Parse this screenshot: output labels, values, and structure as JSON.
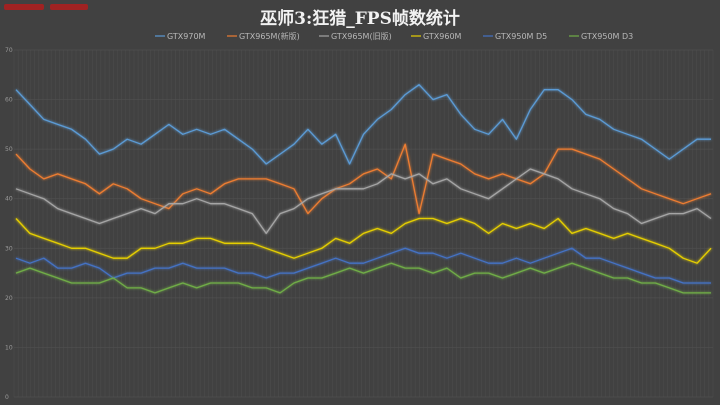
{
  "chart_data": {
    "type": "line",
    "title": "巫师3:狂猎_FPS帧数统计",
    "xlabel": "",
    "ylabel": "",
    "ylim": [
      0,
      70
    ],
    "yticks": [
      0,
      10,
      20,
      30,
      40,
      50,
      60,
      70
    ],
    "grid": true,
    "legend_position": "top",
    "background": "#414141",
    "series": [
      {
        "name": "GTX970M",
        "color": "#5b9bd5",
        "values": [
          62,
          59,
          56,
          55,
          54,
          52,
          49,
          50,
          52,
          51,
          53,
          55,
          53,
          54,
          53,
          54,
          52,
          50,
          47,
          49,
          51,
          54,
          51,
          53,
          47,
          53,
          56,
          58,
          61,
          63,
          60,
          61,
          57,
          54,
          53,
          56,
          52,
          58,
          62,
          62,
          60,
          57,
          56,
          54,
          53,
          52,
          50,
          48,
          50,
          52,
          52
        ]
      },
      {
        "name": "GTX965M(新版)",
        "color": "#ed7d31",
        "values": [
          49,
          46,
          44,
          45,
          44,
          43,
          41,
          43,
          42,
          40,
          39,
          38,
          41,
          42,
          41,
          43,
          44,
          44,
          44,
          43,
          42,
          37,
          40,
          42,
          43,
          45,
          46,
          44,
          51,
          37,
          49,
          48,
          47,
          45,
          44,
          45,
          44,
          43,
          45,
          50,
          50,
          49,
          48,
          46,
          44,
          42,
          41,
          40,
          39,
          40,
          41
        ]
      },
      {
        "name": "GTX965M(旧版)",
        "color": "#a5a5a5",
        "values": [
          42,
          41,
          40,
          38,
          37,
          36,
          35,
          36,
          37,
          38,
          37,
          39,
          39,
          40,
          39,
          39,
          38,
          37,
          33,
          37,
          38,
          40,
          41,
          42,
          42,
          42,
          43,
          45,
          44,
          45,
          43,
          44,
          42,
          41,
          40,
          42,
          44,
          46,
          45,
          44,
          42,
          41,
          40,
          38,
          37,
          35,
          36,
          37,
          37,
          38,
          36
        ]
      },
      {
        "name": "GTX960M",
        "color": "#e6cf00",
        "values": [
          36,
          33,
          32,
          31,
          30,
          30,
          29,
          28,
          28,
          30,
          30,
          31,
          31,
          32,
          32,
          31,
          31,
          31,
          30,
          29,
          28,
          29,
          30,
          32,
          31,
          33,
          34,
          33,
          35,
          36,
          36,
          35,
          36,
          35,
          33,
          35,
          34,
          35,
          34,
          36,
          33,
          34,
          33,
          32,
          33,
          32,
          31,
          30,
          28,
          27,
          30
        ]
      },
      {
        "name": "GTX950M D5",
        "color": "#4472c4",
        "values": [
          28,
          27,
          28,
          26,
          26,
          27,
          26,
          24,
          25,
          25,
          26,
          26,
          27,
          26,
          26,
          26,
          25,
          25,
          24,
          25,
          25,
          26,
          27,
          28,
          27,
          27,
          28,
          29,
          30,
          29,
          29,
          28,
          29,
          28,
          27,
          27,
          28,
          27,
          28,
          29,
          30,
          28,
          28,
          27,
          26,
          25,
          24,
          24,
          23,
          23,
          23
        ]
      },
      {
        "name": "GTX950M D3",
        "color": "#70ad47",
        "values": [
          25,
          26,
          25,
          24,
          23,
          23,
          23,
          24,
          22,
          22,
          21,
          22,
          23,
          22,
          23,
          23,
          23,
          22,
          22,
          21,
          23,
          24,
          24,
          25,
          26,
          25,
          26,
          27,
          26,
          26,
          25,
          26,
          24,
          25,
          25,
          24,
          25,
          26,
          25,
          26,
          27,
          26,
          25,
          24,
          24,
          23,
          23,
          22,
          21,
          21,
          21
        ]
      }
    ]
  },
  "watermark_color": "#d01010"
}
